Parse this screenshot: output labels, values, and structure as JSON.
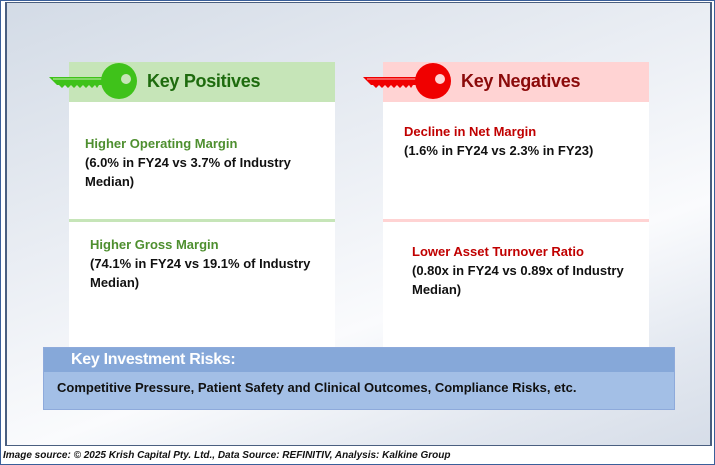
{
  "positives": {
    "title": "Key Positives",
    "accent": "#3fc21a",
    "header_bg": "#c6e5b8",
    "title_color": "#1e6b0e",
    "items": [
      {
        "title": "Higher Operating Margin",
        "detail_1": "(6.0% in FY24 vs 3.7% of Industry",
        "detail_2": "Median)"
      },
      {
        "title": "Higher Gross Margin",
        "detail_1": "(74.1% in FY24 vs 19.1% of Industry",
        "detail_2": "Median)"
      }
    ]
  },
  "negatives": {
    "title": "Key Negatives",
    "accent": "#f00000",
    "header_bg": "#ffd3d3",
    "title_color": "#8b0a0a",
    "items": [
      {
        "title": "Decline in Net Margin",
        "detail_1": "(1.6% in FY24 vs 2.3% in FY23)"
      },
      {
        "title": "Lower Asset Turnover Ratio",
        "detail_1": "(0.80x in FY24 vs 0.89x of Industry",
        "detail_2": "Median)"
      }
    ]
  },
  "risks": {
    "title": "Key Investment Risks:",
    "text": "Competitive Pressure, Patient Safety and Clinical Outcomes, Compliance Risks, etc."
  },
  "footer": "Image source: © 2025 Krish Capital Pty. Ltd., Data Source: REFINITIV, Analysis: Kalkine Group"
}
